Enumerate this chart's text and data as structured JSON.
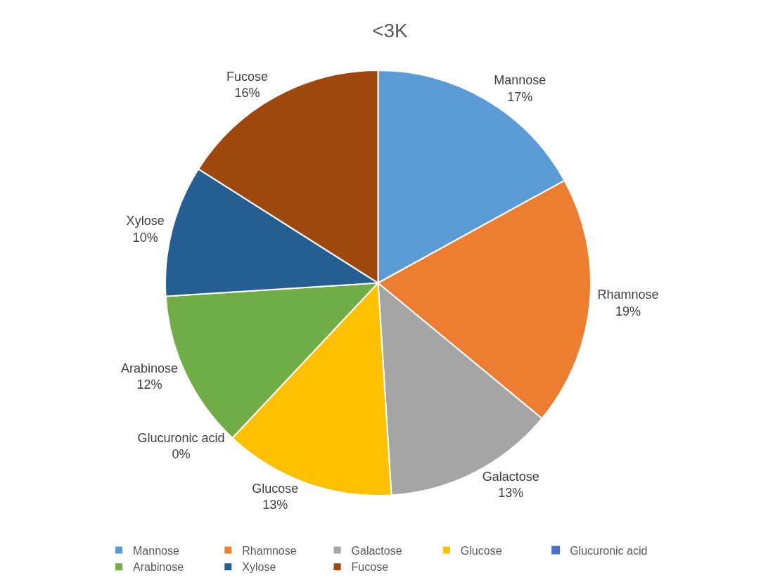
{
  "chart_data": {
    "type": "pie",
    "title": "<3K",
    "categories": [
      "Mannose",
      "Rhamnose",
      "Galactose",
      "Glucose",
      "Glucuronic acid",
      "Arabinose",
      "Xylose",
      "Fucose"
    ],
    "values": [
      17,
      19,
      13,
      13,
      0,
      12,
      10,
      16
    ],
    "value_labels": [
      "17%",
      "19%",
      "13%",
      "13%",
      "0%",
      "12%",
      "10%",
      "16%"
    ],
    "colors": [
      "#5b9bd5",
      "#ed7d31",
      "#a5a5a5",
      "#ffc000",
      "#4472c4",
      "#70ad47",
      "#255e91",
      "#9e480e"
    ],
    "legend": "bottom"
  }
}
